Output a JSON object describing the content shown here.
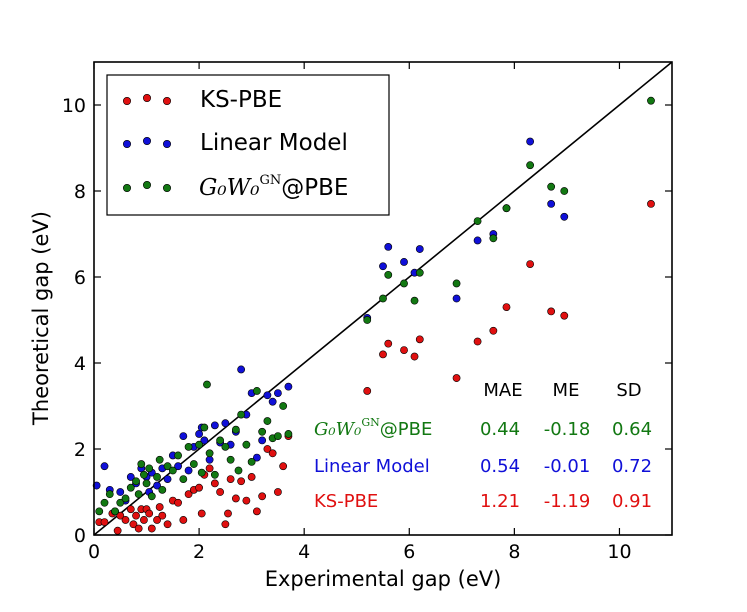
{
  "chart_data": {
    "type": "scatter",
    "xlabel": "Experimental gap (eV)",
    "ylabel": "Theoretical gap (eV)",
    "xlim": [
      0,
      11
    ],
    "ylim": [
      0,
      11
    ],
    "x_ticks": [
      "0",
      "2",
      "4",
      "6",
      "8",
      "10"
    ],
    "y_ticks": [
      "0",
      "2",
      "4",
      "6",
      "8",
      "10"
    ],
    "reference_line": {
      "from": [
        0,
        0
      ],
      "to": [
        11,
        11
      ]
    },
    "legend": {
      "position": "top-left",
      "entries": [
        {
          "label": "KS-PBE",
          "color": "#e01010"
        },
        {
          "label": "Linear Model",
          "color": "#1010d8"
        },
        {
          "label_math": "G₀W₀",
          "label_math_sup": "GN",
          "label_suffix": "@PBE",
          "color": "#127812"
        }
      ]
    },
    "stats_table": {
      "headers": [
        "MAE",
        "ME",
        "SD"
      ],
      "rows": [
        {
          "label_math": "G₀W₀",
          "label_math_sup": "GN",
          "label_suffix": "@PBE",
          "color": "#127812",
          "values": [
            "0.44",
            "-0.18",
            "0.64"
          ]
        },
        {
          "label": "Linear Model",
          "color": "#1010d8",
          "values": [
            "0.54",
            "-0.01",
            "0.72"
          ]
        },
        {
          "label": "KS-PBE",
          "color": "#e01010",
          "values": [
            "1.21",
            "-1.19",
            "0.91"
          ]
        }
      ]
    },
    "series": [
      {
        "name": "KS-PBE",
        "color": "#e01010",
        "points": [
          [
            0.1,
            0.3
          ],
          [
            0.2,
            0.3
          ],
          [
            0.35,
            0.5
          ],
          [
            0.45,
            0.1
          ],
          [
            0.5,
            0.45
          ],
          [
            0.6,
            0.35
          ],
          [
            0.7,
            0.6
          ],
          [
            0.75,
            0.25
          ],
          [
            0.8,
            0.45
          ],
          [
            0.85,
            0.15
          ],
          [
            0.9,
            0.6
          ],
          [
            0.95,
            0.35
          ],
          [
            1.0,
            0.6
          ],
          [
            1.05,
            0.5
          ],
          [
            1.1,
            0.15
          ],
          [
            1.2,
            0.35
          ],
          [
            1.25,
            0.65
          ],
          [
            1.3,
            0.45
          ],
          [
            1.4,
            0.25
          ],
          [
            1.5,
            0.8
          ],
          [
            1.6,
            0.75
          ],
          [
            1.7,
            0.35
          ],
          [
            1.8,
            0.95
          ],
          [
            1.9,
            1.05
          ],
          [
            2.0,
            1.1
          ],
          [
            2.05,
            0.5
          ],
          [
            2.1,
            1.4
          ],
          [
            2.2,
            1.55
          ],
          [
            2.3,
            1.2
          ],
          [
            2.4,
            1.0
          ],
          [
            2.5,
            0.25
          ],
          [
            2.55,
            0.5
          ],
          [
            2.6,
            1.3
          ],
          [
            2.7,
            0.85
          ],
          [
            2.8,
            1.25
          ],
          [
            2.9,
            0.8
          ],
          [
            3.0,
            1.35
          ],
          [
            3.1,
            0.55
          ],
          [
            3.2,
            0.9
          ],
          [
            3.3,
            2.0
          ],
          [
            3.4,
            1.9
          ],
          [
            3.5,
            1.0
          ],
          [
            3.6,
            1.6
          ],
          [
            3.7,
            2.3
          ],
          [
            5.2,
            3.35
          ],
          [
            5.5,
            4.2
          ],
          [
            5.6,
            4.45
          ],
          [
            5.9,
            4.3
          ],
          [
            6.1,
            4.15
          ],
          [
            6.2,
            4.55
          ],
          [
            6.9,
            3.65
          ],
          [
            7.3,
            4.5
          ],
          [
            7.6,
            4.75
          ],
          [
            7.85,
            5.3
          ],
          [
            8.3,
            6.3
          ],
          [
            8.7,
            5.2
          ],
          [
            8.95,
            5.1
          ],
          [
            10.6,
            7.7
          ]
        ]
      },
      {
        "name": "Linear Model",
        "color": "#1010d8",
        "points": [
          [
            0.05,
            1.15
          ],
          [
            0.2,
            1.6
          ],
          [
            0.3,
            1.05
          ],
          [
            0.4,
            0.55
          ],
          [
            0.5,
            1.0
          ],
          [
            0.6,
            0.8
          ],
          [
            0.7,
            1.35
          ],
          [
            0.8,
            1.2
          ],
          [
            0.9,
            1.55
          ],
          [
            1.0,
            1.35
          ],
          [
            1.05,
            1.0
          ],
          [
            1.1,
            1.45
          ],
          [
            1.2,
            1.15
          ],
          [
            1.3,
            1.55
          ],
          [
            1.4,
            1.3
          ],
          [
            1.5,
            1.85
          ],
          [
            1.6,
            1.6
          ],
          [
            1.7,
            2.3
          ],
          [
            1.8,
            1.5
          ],
          [
            1.9,
            2.05
          ],
          [
            2.0,
            2.35
          ],
          [
            2.05,
            2.5
          ],
          [
            2.1,
            2.2
          ],
          [
            2.2,
            1.75
          ],
          [
            2.3,
            2.55
          ],
          [
            2.4,
            2.15
          ],
          [
            2.5,
            2.6
          ],
          [
            2.6,
            2.1
          ],
          [
            2.7,
            2.4
          ],
          [
            2.8,
            3.85
          ],
          [
            2.9,
            2.8
          ],
          [
            3.0,
            3.3
          ],
          [
            3.1,
            1.8
          ],
          [
            3.2,
            2.2
          ],
          [
            3.3,
            3.25
          ],
          [
            3.4,
            3.1
          ],
          [
            3.5,
            3.3
          ],
          [
            3.7,
            3.45
          ],
          [
            5.2,
            5.05
          ],
          [
            5.5,
            6.25
          ],
          [
            5.6,
            6.7
          ],
          [
            5.9,
            6.35
          ],
          [
            6.1,
            6.1
          ],
          [
            6.2,
            6.65
          ],
          [
            6.9,
            5.5
          ],
          [
            7.3,
            6.85
          ],
          [
            7.6,
            7.0
          ],
          [
            7.85,
            7.6
          ],
          [
            8.3,
            9.15
          ],
          [
            8.7,
            7.7
          ],
          [
            8.95,
            7.4
          ]
        ]
      },
      {
        "name": "G0W0GN@PBE",
        "color": "#127812",
        "points": [
          [
            0.1,
            0.55
          ],
          [
            0.2,
            0.75
          ],
          [
            0.3,
            0.95
          ],
          [
            0.4,
            0.55
          ],
          [
            0.5,
            0.75
          ],
          [
            0.6,
            0.85
          ],
          [
            0.7,
            1.1
          ],
          [
            0.8,
            1.25
          ],
          [
            0.85,
            0.95
          ],
          [
            0.9,
            1.65
          ],
          [
            0.95,
            1.4
          ],
          [
            1.0,
            1.2
          ],
          [
            1.05,
            1.55
          ],
          [
            1.1,
            0.9
          ],
          [
            1.2,
            1.35
          ],
          [
            1.25,
            1.75
          ],
          [
            1.3,
            1.05
          ],
          [
            1.4,
            1.6
          ],
          [
            1.5,
            1.5
          ],
          [
            1.6,
            1.85
          ],
          [
            1.7,
            1.3
          ],
          [
            1.8,
            2.05
          ],
          [
            1.9,
            1.65
          ],
          [
            2.0,
            2.1
          ],
          [
            2.05,
            1.45
          ],
          [
            2.1,
            2.5
          ],
          [
            2.15,
            3.5
          ],
          [
            2.2,
            1.9
          ],
          [
            2.3,
            1.4
          ],
          [
            2.4,
            2.2
          ],
          [
            2.5,
            2.05
          ],
          [
            2.6,
            1.75
          ],
          [
            2.7,
            2.45
          ],
          [
            2.75,
            1.5
          ],
          [
            2.8,
            2.8
          ],
          [
            2.9,
            2.1
          ],
          [
            3.0,
            1.7
          ],
          [
            3.1,
            3.35
          ],
          [
            3.2,
            2.4
          ],
          [
            3.3,
            2.65
          ],
          [
            3.4,
            2.25
          ],
          [
            3.5,
            2.3
          ],
          [
            3.6,
            3.0
          ],
          [
            3.7,
            2.35
          ],
          [
            5.2,
            5.0
          ],
          [
            5.5,
            5.5
          ],
          [
            5.6,
            6.05
          ],
          [
            5.9,
            5.85
          ],
          [
            6.1,
            5.45
          ],
          [
            6.2,
            6.1
          ],
          [
            6.9,
            5.85
          ],
          [
            7.3,
            7.3
          ],
          [
            7.6,
            6.9
          ],
          [
            7.85,
            7.6
          ],
          [
            8.3,
            8.6
          ],
          [
            8.7,
            8.1
          ],
          [
            8.95,
            8.0
          ],
          [
            10.6,
            10.1
          ]
        ]
      }
    ]
  }
}
